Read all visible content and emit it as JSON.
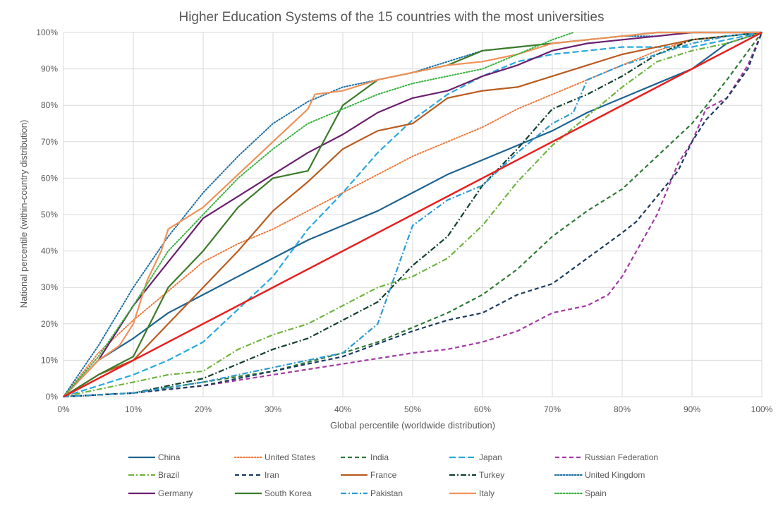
{
  "chart_data": {
    "type": "line",
    "title": "Higher Education Systems of the 15 countries with the most universities",
    "xlabel": "Global percentile (worldwide distribution)",
    "ylabel": "National percentile (within-country distribution)",
    "xlim": [
      0,
      100
    ],
    "ylim": [
      0,
      100
    ],
    "x_ticks": [
      "0%",
      "10%",
      "20%",
      "30%",
      "40%",
      "50%",
      "60%",
      "70%",
      "80%",
      "90%",
      "100%"
    ],
    "y_ticks": [
      "0%",
      "10%",
      "20%",
      "30%",
      "40%",
      "50%",
      "60%",
      "70%",
      "80%",
      "90%",
      "100%"
    ],
    "grid": true,
    "legend_position": "bottom",
    "reference_line": {
      "color": "#e8201f",
      "x": [
        0,
        100
      ],
      "y": [
        0,
        100
      ]
    },
    "series": [
      {
        "name": "China",
        "color": "#1f6391",
        "dash": "solid",
        "x": [
          0,
          5,
          10,
          15,
          20,
          25,
          30,
          35,
          40,
          45,
          50,
          55,
          60,
          65,
          70,
          75,
          80,
          85,
          90,
          95,
          100
        ],
        "y": [
          0,
          10,
          16,
          23,
          28,
          33,
          38,
          43,
          47,
          51,
          56,
          61,
          65,
          69,
          73,
          78,
          82,
          86,
          90,
          97,
          100
        ]
      },
      {
        "name": "United States",
        "color": "#ee7b3f",
        "dash": "dot",
        "x": [
          0,
          5,
          10,
          15,
          20,
          25,
          30,
          35,
          40,
          45,
          50,
          55,
          60,
          65,
          70,
          75,
          80,
          85,
          90,
          95,
          100
        ],
        "y": [
          0,
          12,
          21,
          29,
          37,
          42,
          46,
          51,
          56,
          61,
          66,
          70,
          74,
          79,
          83,
          87,
          91,
          95,
          98,
          99,
          100
        ]
      },
      {
        "name": "India",
        "color": "#2f7a36",
        "dash": "dash",
        "x": [
          0,
          10,
          20,
          30,
          40,
          45,
          50,
          55,
          60,
          65,
          70,
          75,
          80,
          85,
          90,
          95,
          100
        ],
        "y": [
          0,
          1,
          4,
          7,
          12,
          15,
          19,
          23,
          28,
          35,
          44,
          51,
          57,
          66,
          75,
          87,
          100
        ]
      },
      {
        "name": "Japan",
        "color": "#29a8e0",
        "dash": "longdash",
        "x": [
          0,
          5,
          10,
          15,
          20,
          25,
          30,
          35,
          40,
          45,
          50,
          55,
          60,
          65,
          70,
          75,
          80,
          85,
          90,
          95,
          100
        ],
        "y": [
          0,
          3,
          6,
          10,
          15,
          24,
          33,
          46,
          56,
          67,
          76,
          83,
          88,
          92,
          94,
          95,
          96,
          96,
          96,
          98,
          100
        ]
      },
      {
        "name": "Russian Federation",
        "color": "#a23aa5",
        "dash": "dash",
        "x": [
          0,
          10,
          20,
          30,
          40,
          50,
          55,
          60,
          65,
          70,
          75,
          78,
          80,
          85,
          88,
          90,
          92,
          95,
          98,
          100
        ],
        "y": [
          0,
          1,
          3,
          6,
          9,
          12,
          13,
          15,
          18,
          23,
          25,
          28,
          33,
          50,
          64,
          70,
          79,
          82,
          91,
          100
        ]
      },
      {
        "name": "Brazil",
        "color": "#6fb43f",
        "dash": "dashdot",
        "x": [
          0,
          5,
          10,
          15,
          20,
          25,
          30,
          35,
          40,
          45,
          50,
          55,
          60,
          65,
          70,
          75,
          80,
          85,
          90,
          95,
          100
        ],
        "y": [
          0,
          2,
          4,
          6,
          7,
          13,
          17,
          20,
          25,
          30,
          33,
          38,
          47,
          59,
          69,
          77,
          85,
          92,
          95,
          97,
          100
        ]
      },
      {
        "name": "Iran",
        "color": "#1b3b5c",
        "dash": "dash",
        "x": [
          0,
          10,
          20,
          30,
          40,
          50,
          55,
          60,
          65,
          70,
          75,
          80,
          82,
          85,
          88,
          90,
          92,
          95,
          98,
          100
        ],
        "y": [
          0,
          1,
          3,
          7,
          11,
          18,
          21,
          23,
          28,
          31,
          38,
          45,
          48,
          55,
          62,
          70,
          76,
          82,
          90,
          100
        ]
      },
      {
        "name": "France",
        "color": "#b85c20",
        "dash": "solid",
        "x": [
          0,
          5,
          10,
          15,
          20,
          25,
          30,
          35,
          40,
          45,
          50,
          55,
          60,
          65,
          70,
          75,
          80,
          85,
          90,
          95,
          100
        ],
        "y": [
          0,
          6,
          10,
          20,
          30,
          40,
          51,
          59,
          68,
          73,
          75,
          82,
          84,
          85,
          88,
          91,
          94,
          96,
          98,
          99,
          100
        ]
      },
      {
        "name": "Turkey",
        "color": "#11402c",
        "dash": "dashdot",
        "x": [
          0,
          10,
          20,
          25,
          30,
          35,
          40,
          45,
          50,
          55,
          60,
          65,
          70,
          75,
          80,
          85,
          90,
          95,
          100
        ],
        "y": [
          0,
          1,
          5,
          9,
          13,
          16,
          21,
          26,
          36,
          44,
          58,
          68,
          79,
          83,
          88,
          94,
          98,
          99,
          100
        ]
      },
      {
        "name": "United Kingdom",
        "color": "#1e6fa6",
        "dash": "dot",
        "x": [
          0,
          5,
          10,
          15,
          20,
          25,
          30,
          35,
          40,
          45,
          50,
          55,
          60,
          65,
          70,
          75,
          80,
          85,
          90,
          95,
          100
        ],
        "y": [
          0,
          14,
          30,
          44,
          56,
          66,
          75,
          81,
          85,
          87,
          89,
          92,
          95,
          96,
          97,
          98,
          99,
          99,
          100,
          100,
          100
        ]
      },
      {
        "name": "Germany",
        "color": "#6a1f6e",
        "dash": "solid",
        "x": [
          0,
          5,
          10,
          15,
          20,
          25,
          30,
          35,
          40,
          45,
          50,
          55,
          60,
          65,
          70,
          75,
          80,
          85,
          90,
          95,
          100
        ],
        "y": [
          0,
          10,
          25,
          37,
          49,
          55,
          61,
          67,
          72,
          78,
          82,
          84,
          88,
          91,
          95,
          97,
          98,
          99,
          100,
          100,
          100
        ]
      },
      {
        "name": "South Korea",
        "color": "#3b7a2a",
        "dash": "solid",
        "x": [
          0,
          5,
          10,
          15,
          20,
          25,
          30,
          35,
          40,
          45,
          50,
          55,
          60,
          65,
          70,
          75,
          80,
          85,
          90,
          95,
          100
        ],
        "y": [
          0,
          6,
          11,
          30,
          40,
          52,
          60,
          62,
          80,
          87,
          89,
          91,
          95,
          96,
          97,
          98,
          99,
          100,
          100,
          100,
          100
        ]
      },
      {
        "name": "Pakistan",
        "color": "#2c9ad1",
        "dash": "dashdot",
        "x": [
          0,
          10,
          20,
          30,
          40,
          45,
          50,
          55,
          60,
          65,
          70,
          73,
          75,
          80,
          85,
          90,
          95,
          100
        ],
        "y": [
          0,
          1,
          4,
          8,
          12,
          20,
          47,
          54,
          58,
          67,
          75,
          78,
          87,
          91,
          94,
          97,
          99,
          100
        ]
      },
      {
        "name": "Italy",
        "color": "#f0925a",
        "dash": "solid",
        "x": [
          0,
          5,
          8,
          10,
          12,
          14,
          15,
          20,
          25,
          30,
          35,
          36,
          40,
          45,
          50,
          55,
          60,
          65,
          70,
          75,
          80,
          85,
          90,
          95,
          100
        ],
        "y": [
          0,
          10,
          14,
          20,
          32,
          40,
          46,
          52,
          61,
          70,
          79,
          83,
          84,
          87,
          89,
          91,
          92,
          94,
          97,
          98,
          99,
          100,
          100,
          100,
          100
        ]
      },
      {
        "name": "Spain",
        "color": "#37b23f",
        "dash": "dot",
        "x": [
          0,
          5,
          10,
          15,
          20,
          25,
          30,
          35,
          40,
          45,
          50,
          55,
          60,
          65,
          70,
          73
        ],
        "y": [
          0,
          11,
          25,
          40,
          50,
          60,
          68,
          75,
          79,
          83,
          86,
          88,
          90,
          94,
          98,
          100
        ]
      }
    ]
  }
}
